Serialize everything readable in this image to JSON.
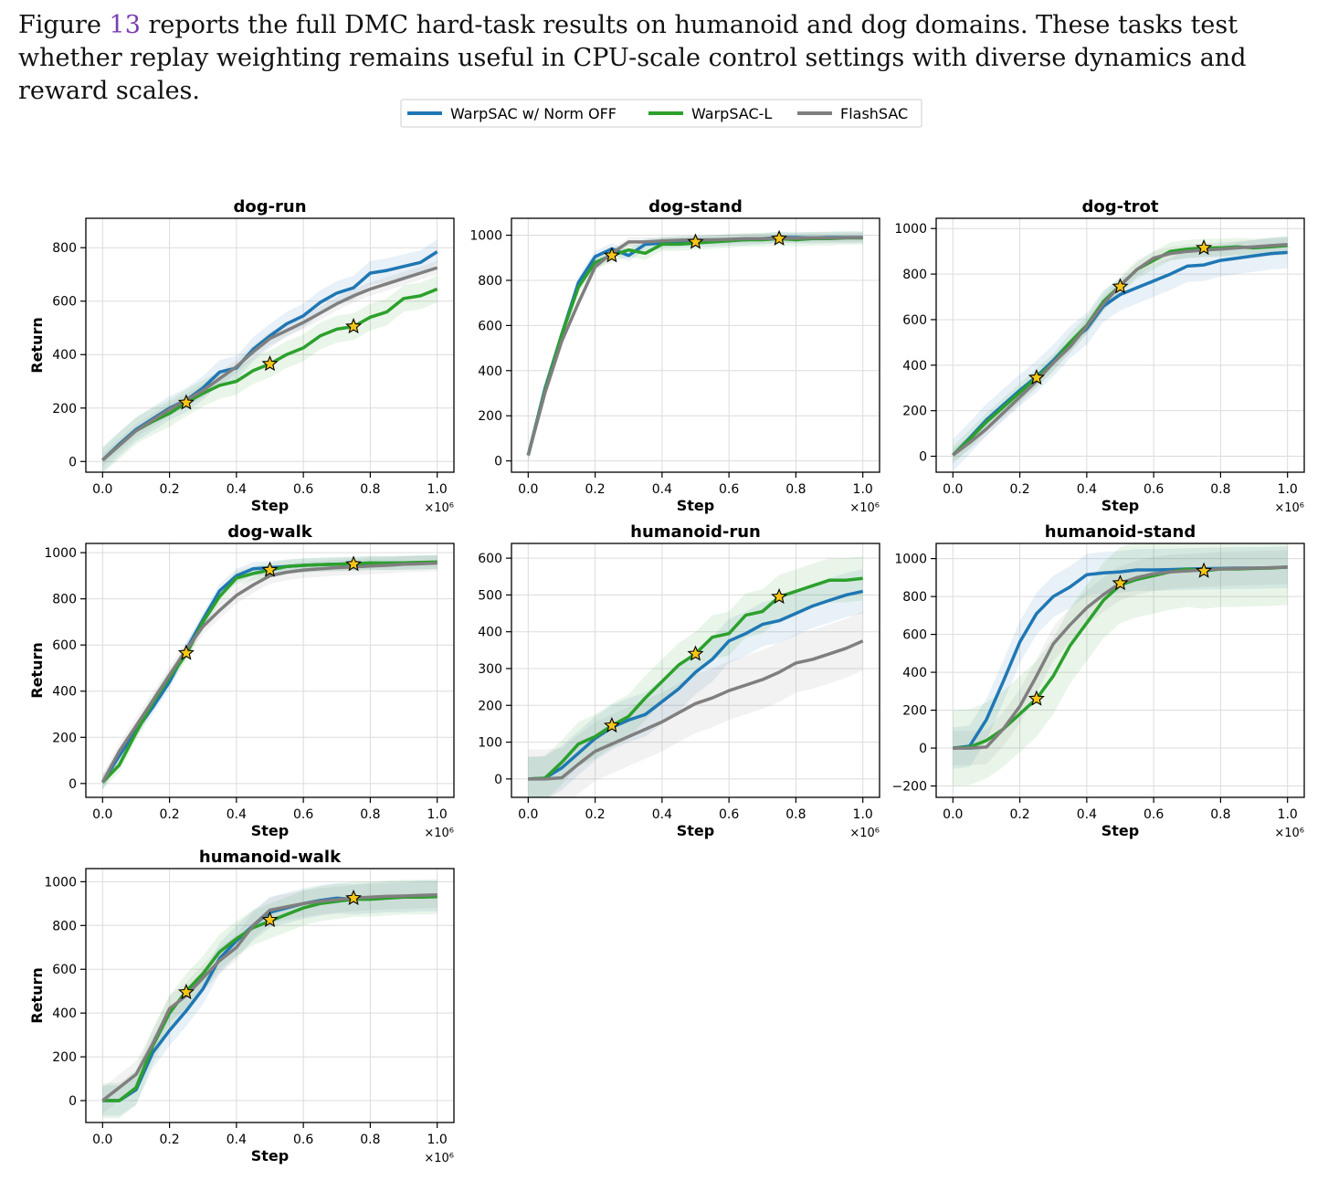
{
  "caption": {
    "fig_word": "Figure",
    "fig_number": "13",
    "text": "reports the full DMC hard-task results on humanoid and dog domains. These tasks test whether replay weighting remains useful in CPU-scale control settings with diverse dynamics and reward scales."
  },
  "colors": {
    "blue": "#1f77b4",
    "green": "#2ca02c",
    "gray": "#7f7f7f",
    "star": "#f5c518"
  },
  "legend": [
    {
      "name": "WarpSAC w/ Norm OFF",
      "color": "#1f77b4"
    },
    {
      "name": "WarpSAC-L",
      "color": "#2ca02c"
    },
    {
      "name": "FlashSAC",
      "color": "#7f7f7f"
    }
  ],
  "chart_data": [
    {
      "type": "line",
      "title": "dog-run",
      "xlabel": "Step",
      "ylabel": "Return",
      "x_scale_label": "×10⁶",
      "xlim": [
        -0.05,
        1.05
      ],
      "ylim": [
        -40,
        910
      ],
      "yticks": [
        0,
        200,
        400,
        600,
        800
      ],
      "x": [
        0,
        0.05,
        0.1,
        0.15,
        0.2,
        0.25,
        0.3,
        0.35,
        0.4,
        0.45,
        0.5,
        0.55,
        0.6,
        0.65,
        0.7,
        0.75,
        0.8,
        0.85,
        0.9,
        0.95,
        1.0
      ],
      "series": [
        {
          "name": "WarpSAC w/ Norm OFF",
          "values": [
            5,
            65,
            120,
            160,
            200,
            230,
            275,
            335,
            350,
            420,
            470,
            515,
            545,
            595,
            630,
            650,
            705,
            715,
            730,
            745,
            785
          ],
          "band": 45
        },
        {
          "name": "WarpSAC-L",
          "values": [
            5,
            60,
            115,
            150,
            180,
            220,
            255,
            285,
            300,
            340,
            365,
            400,
            425,
            470,
            495,
            505,
            540,
            560,
            610,
            620,
            645
          ],
          "band": 50
        },
        {
          "name": "FlashSAC",
          "values": [
            5,
            60,
            115,
            155,
            195,
            230,
            265,
            310,
            355,
            410,
            460,
            490,
            520,
            555,
            590,
            620,
            645,
            665,
            685,
            705,
            725
          ],
          "band": 25
        }
      ],
      "stars": [
        [
          0.25,
          220
        ],
        [
          0.5,
          365
        ],
        [
          0.75,
          505
        ]
      ]
    },
    {
      "type": "line",
      "title": "dog-stand",
      "xlabel": "Step",
      "ylabel": "",
      "x_scale_label": "×10⁶",
      "xlim": [
        -0.05,
        1.05
      ],
      "ylim": [
        -50,
        1075
      ],
      "yticks": [
        0,
        200,
        400,
        600,
        800,
        1000
      ],
      "x": [
        0,
        0.05,
        0.1,
        0.15,
        0.2,
        0.25,
        0.3,
        0.35,
        0.4,
        0.45,
        0.5,
        0.55,
        0.6,
        0.65,
        0.7,
        0.75,
        0.8,
        0.85,
        0.9,
        0.95,
        1.0
      ],
      "series": [
        {
          "name": "WarpSAC w/ Norm OFF",
          "values": [
            25,
            320,
            560,
            790,
            905,
            940,
            910,
            960,
            965,
            970,
            972,
            975,
            978,
            980,
            985,
            990,
            990,
            988,
            990,
            990,
            990
          ],
          "band": 25
        },
        {
          "name": "WarpSAC-L",
          "values": [
            25,
            310,
            560,
            770,
            880,
            910,
            935,
            920,
            960,
            960,
            965,
            970,
            975,
            980,
            980,
            985,
            980,
            985,
            985,
            988,
            988
          ],
          "band": 30
        },
        {
          "name": "FlashSAC",
          "values": [
            25,
            300,
            530,
            700,
            860,
            920,
            970,
            970,
            975,
            978,
            980,
            980,
            982,
            985,
            985,
            986,
            987,
            988,
            988,
            989,
            990
          ],
          "band": 20
        }
      ],
      "stars": [
        [
          0.25,
          910
        ],
        [
          0.5,
          970
        ],
        [
          0.75,
          985
        ]
      ]
    },
    {
      "type": "line",
      "title": "dog-trot",
      "xlabel": "Step",
      "ylabel": "",
      "x_scale_label": "×10⁶",
      "xlim": [
        -0.05,
        1.05
      ],
      "ylim": [
        -70,
        1045
      ],
      "yticks": [
        0,
        200,
        400,
        600,
        800,
        1000
      ],
      "x": [
        0,
        0.05,
        0.1,
        0.15,
        0.2,
        0.25,
        0.3,
        0.35,
        0.4,
        0.45,
        0.5,
        0.55,
        0.6,
        0.65,
        0.7,
        0.75,
        0.8,
        0.85,
        0.9,
        0.95,
        1.0
      ],
      "series": [
        {
          "name": "WarpSAC w/ Norm OFF",
          "values": [
            5,
            80,
            160,
            225,
            290,
            350,
            420,
            500,
            560,
            660,
            710,
            740,
            770,
            800,
            835,
            840,
            860,
            870,
            880,
            890,
            895
          ],
          "band": 70
        },
        {
          "name": "WarpSAC-L",
          "values": [
            5,
            75,
            150,
            215,
            280,
            345,
            410,
            500,
            575,
            680,
            750,
            820,
            860,
            900,
            910,
            915,
            915,
            920,
            915,
            920,
            925
          ],
          "band": 40
        },
        {
          "name": "FlashSAC",
          "values": [
            5,
            60,
            120,
            190,
            260,
            330,
            410,
            480,
            570,
            670,
            750,
            820,
            870,
            890,
            900,
            905,
            910,
            915,
            920,
            925,
            930
          ],
          "band": 30
        }
      ],
      "stars": [
        [
          0.25,
          345
        ],
        [
          0.5,
          745
        ],
        [
          0.75,
          915
        ]
      ]
    },
    {
      "type": "line",
      "title": "dog-walk",
      "xlabel": "Step",
      "ylabel": "Return",
      "x_scale_label": "×10⁶",
      "xlim": [
        -0.05,
        1.05
      ],
      "ylim": [
        -60,
        1040
      ],
      "yticks": [
        0,
        200,
        400,
        600,
        800,
        1000
      ],
      "x": [
        0,
        0.05,
        0.1,
        0.15,
        0.2,
        0.25,
        0.3,
        0.35,
        0.4,
        0.45,
        0.5,
        0.55,
        0.6,
        0.65,
        0.7,
        0.75,
        0.8,
        0.85,
        0.9,
        0.95,
        1.0
      ],
      "series": [
        {
          "name": "WarpSAC w/ Norm OFF",
          "values": [
            5,
            120,
            230,
            330,
            440,
            580,
            710,
            835,
            900,
            930,
            935,
            940,
            945,
            948,
            950,
            952,
            955,
            955,
            956,
            957,
            958
          ],
          "band": 30
        },
        {
          "name": "WarpSAC-L",
          "values": [
            5,
            80,
            220,
            350,
            460,
            560,
            700,
            810,
            890,
            910,
            925,
            940,
            945,
            948,
            950,
            952,
            956,
            955,
            956,
            958,
            960
          ],
          "band": 30
        },
        {
          "name": "FlashSAC",
          "values": [
            5,
            140,
            250,
            360,
            470,
            580,
            680,
            750,
            815,
            860,
            900,
            915,
            925,
            930,
            935,
            938,
            942,
            945,
            950,
            952,
            955
          ],
          "band": 35
        }
      ],
      "stars": [
        [
          0.25,
          565
        ],
        [
          0.5,
          925
        ],
        [
          0.75,
          950
        ]
      ]
    },
    {
      "type": "line",
      "title": "humanoid-run",
      "xlabel": "Step",
      "ylabel": "",
      "x_scale_label": "×10⁶",
      "xlim": [
        -0.05,
        1.05
      ],
      "ylim": [
        -50,
        640
      ],
      "yticks": [
        0,
        100,
        200,
        300,
        400,
        500,
        600
      ],
      "x": [
        0,
        0.05,
        0.1,
        0.15,
        0.2,
        0.25,
        0.3,
        0.35,
        0.4,
        0.45,
        0.5,
        0.55,
        0.6,
        0.65,
        0.7,
        0.75,
        0.8,
        0.85,
        0.9,
        0.95,
        1.0
      ],
      "series": [
        {
          "name": "WarpSAC w/ Norm OFF",
          "values": [
            0,
            2,
            30,
            70,
            110,
            140,
            160,
            175,
            210,
            245,
            290,
            325,
            375,
            395,
            420,
            430,
            450,
            470,
            485,
            500,
            510
          ],
          "band": 60
        },
        {
          "name": "WarpSAC-L",
          "values": [
            0,
            2,
            45,
            95,
            115,
            145,
            170,
            220,
            265,
            310,
            340,
            385,
            395,
            445,
            455,
            495,
            510,
            525,
            540,
            540,
            545
          ],
          "band": 60
        },
        {
          "name": "FlashSAC",
          "values": [
            0,
            0,
            3,
            40,
            75,
            95,
            115,
            135,
            155,
            180,
            205,
            220,
            240,
            255,
            270,
            290,
            315,
            325,
            340,
            355,
            375
          ],
          "band": 80
        }
      ],
      "stars": [
        [
          0.25,
          145
        ],
        [
          0.5,
          340
        ],
        [
          0.75,
          495
        ]
      ]
    },
    {
      "type": "line",
      "title": "humanoid-stand",
      "xlabel": "Step",
      "ylabel": "",
      "x_scale_label": "×10⁶",
      "xlim": [
        -0.05,
        1.05
      ],
      "ylim": [
        -260,
        1080
      ],
      "yticks": [
        -200,
        0,
        200,
        400,
        600,
        800,
        1000
      ],
      "x": [
        0,
        0.05,
        0.1,
        0.15,
        0.2,
        0.25,
        0.3,
        0.35,
        0.4,
        0.45,
        0.5,
        0.55,
        0.6,
        0.65,
        0.7,
        0.75,
        0.8,
        0.85,
        0.9,
        0.95,
        1.0
      ],
      "series": [
        {
          "name": "WarpSAC w/ Norm OFF",
          "values": [
            0,
            10,
            150,
            350,
            560,
            710,
            800,
            850,
            915,
            925,
            930,
            940,
            940,
            942,
            945,
            947,
            948,
            950,
            950,
            952,
            955
          ],
          "band": 110
        },
        {
          "name": "WarpSAC-L",
          "values": [
            0,
            5,
            40,
            100,
            180,
            260,
            380,
            540,
            660,
            780,
            860,
            890,
            910,
            930,
            945,
            935,
            945,
            945,
            948,
            950,
            955
          ],
          "band": 200
        },
        {
          "name": "FlashSAC",
          "values": [
            0,
            0,
            5,
            100,
            220,
            380,
            550,
            650,
            740,
            810,
            870,
            900,
            920,
            930,
            935,
            940,
            945,
            948,
            950,
            952,
            955
          ],
          "band": 90
        }
      ],
      "stars": [
        [
          0.25,
          260
        ],
        [
          0.5,
          870
        ],
        [
          0.75,
          935
        ]
      ]
    },
    {
      "type": "line",
      "title": "humanoid-walk",
      "xlabel": "Step",
      "ylabel": "Return",
      "x_scale_label": "×10⁶",
      "xlim": [
        -0.05,
        1.05
      ],
      "ylim": [
        -100,
        1060
      ],
      "yticks": [
        0,
        200,
        400,
        600,
        800,
        1000
      ],
      "x": [
        0,
        0.05,
        0.1,
        0.15,
        0.2,
        0.25,
        0.3,
        0.35,
        0.4,
        0.45,
        0.5,
        0.55,
        0.6,
        0.65,
        0.7,
        0.75,
        0.8,
        0.85,
        0.9,
        0.95,
        1.0
      ],
      "series": [
        {
          "name": "WarpSAC w/ Norm OFF",
          "values": [
            0,
            0,
            50,
            220,
            320,
            410,
            510,
            650,
            730,
            800,
            860,
            880,
            900,
            915,
            925,
            920,
            925,
            930,
            930,
            935,
            935
          ],
          "band": 70
        },
        {
          "name": "WarpSAC-L",
          "values": [
            0,
            0,
            60,
            250,
            400,
            500,
            580,
            680,
            740,
            790,
            820,
            850,
            880,
            900,
            910,
            920,
            920,
            925,
            930,
            930,
            932
          ],
          "band": 80
        },
        {
          "name": "FlashSAC",
          "values": [
            0,
            60,
            120,
            260,
            420,
            480,
            560,
            640,
            700,
            800,
            870,
            885,
            900,
            910,
            918,
            925,
            930,
            933,
            935,
            938,
            940
          ],
          "band": 60
        }
      ],
      "stars": [
        [
          0.25,
          495
        ],
        [
          0.5,
          825
        ],
        [
          0.75,
          925
        ]
      ]
    }
  ]
}
